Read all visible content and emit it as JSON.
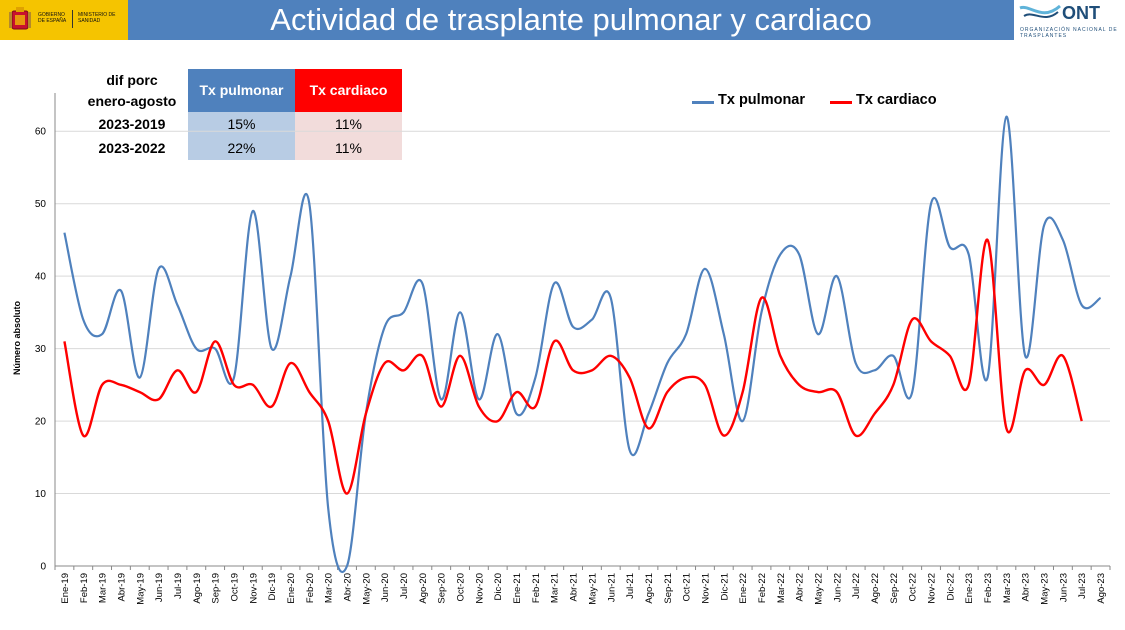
{
  "header": {
    "title": "Actividad de trasplante pulmonar y cardiaco",
    "gov_logo_text": "GOBIERNO DE ESPAÑA",
    "ministry_text": "MINISTERIO DE SANIDAD",
    "ont_logo_text": "ONT",
    "ont_subtitle": "ORGANIZACIÓN NACIONAL DE TRASPLANTES"
  },
  "summary_table": {
    "header_label_line1": "dif porc",
    "header_label_line2": "enero-agosto",
    "columns": [
      "Tx pulmonar",
      "Tx cardiaco"
    ],
    "rows": [
      {
        "label": "2023-2019",
        "values": [
          "15%",
          "11%"
        ]
      },
      {
        "label": "2023-2022",
        "values": [
          "22%",
          "11%"
        ]
      }
    ],
    "colors": {
      "pulmonar_header": "#4f81bd",
      "cardiaco_header": "#ff0000",
      "pulmonar_cell": "#b8cce4",
      "cardiaco_cell": "#f2dcdb"
    }
  },
  "chart_data": {
    "type": "line",
    "title": "",
    "xlabel": "",
    "ylabel": "Número absoluto",
    "ylim": [
      0,
      65
    ],
    "yticks": [
      0,
      10,
      20,
      30,
      40,
      50,
      60
    ],
    "grid": true,
    "legend_position": "top-right",
    "categories": [
      "Ene-19",
      "Feb-19",
      "Mar-19",
      "Abr-19",
      "May-19",
      "Jun-19",
      "Jul-19",
      "Ago-19",
      "Sep-19",
      "Oct-19",
      "Nov-19",
      "Dic-19",
      "Ene-20",
      "Feb-20",
      "Mar-20",
      "Abr-20",
      "May-20",
      "Jun-20",
      "Jul-20",
      "Ago-20",
      "Sep-20",
      "Oct-20",
      "Nov-20",
      "Dic-20",
      "Ene-21",
      "Feb-21",
      "Mar-21",
      "Abr-21",
      "May-21",
      "Jun-21",
      "Jul-21",
      "Ago-21",
      "Sep-21",
      "Oct-21",
      "Nov-21",
      "Dic-21",
      "Ene-22",
      "Feb-22",
      "Mar-22",
      "Abr-22",
      "May-22",
      "Jun-22",
      "Jul-22",
      "Ago-22",
      "Sep-22",
      "Oct-22",
      "Nov-22",
      "Dic-22",
      "Ene-23",
      "Feb-23",
      "Mar-23",
      "Abr-23",
      "May-23",
      "Jun-23",
      "Jul-23",
      "Ago-23"
    ],
    "series": [
      {
        "name": "Tx pulmonar",
        "color": "#4f81bd",
        "values": [
          46,
          34,
          32,
          38,
          26,
          41,
          36,
          30,
          30,
          26,
          49,
          30,
          40,
          50,
          8,
          0,
          21,
          33,
          35,
          39,
          23,
          35,
          23,
          32,
          21,
          26,
          39,
          33,
          34,
          37,
          16,
          21,
          28,
          32,
          41,
          32,
          20,
          35,
          43,
          43,
          32,
          40,
          28,
          27,
          29,
          24,
          50,
          44,
          43,
          26,
          62,
          29,
          47,
          45,
          36,
          37
        ]
      },
      {
        "name": "Tx cardiaco",
        "color": "#ff0000",
        "values": [
          31,
          18,
          25,
          25,
          24,
          23,
          27,
          24,
          31,
          25,
          25,
          22,
          28,
          24,
          20,
          10,
          21,
          28,
          27,
          29,
          22,
          29,
          22,
          20,
          24,
          22,
          31,
          27,
          27,
          29,
          26,
          19,
          24,
          26,
          25,
          18,
          24,
          37,
          29,
          25,
          24,
          24,
          18,
          21,
          25,
          34,
          31,
          29,
          25,
          45,
          19,
          27,
          25,
          29,
          20,
          null
        ]
      }
    ]
  }
}
